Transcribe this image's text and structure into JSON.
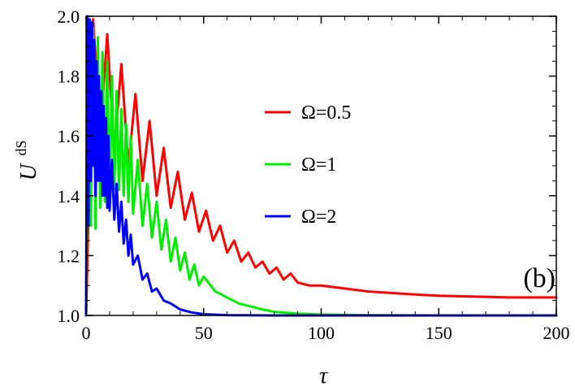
{
  "chart_data": {
    "type": "line",
    "xlabel": "τ",
    "ylabel_main": "U",
    "ylabel_sup": "dS",
    "annotation": "(b)",
    "xlim": [
      0,
      200
    ],
    "ylim": [
      1.0,
      2.0
    ],
    "x_ticks": [
      0,
      50,
      100,
      150,
      200
    ],
    "x_tick_labels": [
      "0",
      "50",
      "100",
      "150",
      "200"
    ],
    "y_ticks": [
      1.0,
      1.2,
      1.4,
      1.6,
      1.8,
      2.0
    ],
    "y_tick_labels": [
      "1.0",
      "1.2",
      "1.4",
      "1.6",
      "1.8",
      "2.0"
    ],
    "legend_position": "right",
    "series": [
      {
        "name": "Ω=0.5",
        "color": "#ff0000",
        "x": [
          0,
          3,
          6,
          9,
          12,
          15,
          18,
          21,
          24,
          27,
          30,
          33,
          36,
          39,
          42,
          45,
          48,
          51,
          54,
          57,
          60,
          63,
          66,
          69,
          72,
          75,
          78,
          81,
          84,
          87,
          90,
          95,
          100,
          110,
          120,
          130,
          140,
          150,
          160,
          170,
          180,
          190,
          200
        ],
        "values": [
          1.0,
          1.99,
          1.6,
          1.94,
          1.55,
          1.84,
          1.5,
          1.74,
          1.45,
          1.65,
          1.4,
          1.56,
          1.36,
          1.48,
          1.32,
          1.41,
          1.28,
          1.35,
          1.25,
          1.3,
          1.21,
          1.25,
          1.18,
          1.21,
          1.16,
          1.18,
          1.14,
          1.16,
          1.12,
          1.14,
          1.11,
          1.1,
          1.1,
          1.09,
          1.08,
          1.075,
          1.07,
          1.066,
          1.064,
          1.062,
          1.06,
          1.06,
          1.06
        ]
      },
      {
        "name": "Ω=1",
        "color": "#00ee00",
        "x": [
          0,
          1,
          2,
          3,
          4,
          5,
          6,
          7,
          8,
          9,
          10,
          11,
          12,
          13,
          14,
          15,
          16,
          17,
          18,
          19,
          20,
          22,
          24,
          26,
          28,
          30,
          32,
          34,
          36,
          38,
          40,
          42,
          44,
          46,
          48,
          50,
          55,
          60,
          65,
          70,
          75,
          80,
          90,
          100,
          120,
          150,
          200
        ],
        "values": [
          1.0,
          1.9,
          1.3,
          1.96,
          1.29,
          1.93,
          1.36,
          1.88,
          1.38,
          1.85,
          1.4,
          1.8,
          1.42,
          1.75,
          1.42,
          1.69,
          1.4,
          1.64,
          1.38,
          1.6,
          1.34,
          1.52,
          1.3,
          1.44,
          1.26,
          1.38,
          1.22,
          1.32,
          1.18,
          1.26,
          1.15,
          1.21,
          1.12,
          1.17,
          1.1,
          1.13,
          1.08,
          1.06,
          1.04,
          1.03,
          1.02,
          1.012,
          1.006,
          1.003,
          1.001,
          1.0,
          1.0
        ]
      },
      {
        "name": "Ω=2",
        "color": "#0000ff",
        "x": [
          0,
          0.5,
          1,
          1.5,
          2,
          2.5,
          3,
          3.5,
          4,
          4.5,
          5,
          5.5,
          6,
          6.5,
          7,
          7.5,
          8,
          8.5,
          9,
          9.5,
          10,
          11,
          12,
          13,
          14,
          15,
          16,
          17,
          18,
          19,
          20,
          22,
          24,
          26,
          28,
          30,
          33,
          36,
          40,
          45,
          50,
          60,
          80,
          100,
          150,
          200
        ],
        "values": [
          1.0,
          2.0,
          1.3,
          1.99,
          1.45,
          1.98,
          1.5,
          1.92,
          1.4,
          1.85,
          1.45,
          1.8,
          1.45,
          1.75,
          1.4,
          1.7,
          1.4,
          1.66,
          1.36,
          1.6,
          1.35,
          1.52,
          1.32,
          1.44,
          1.28,
          1.38,
          1.24,
          1.32,
          1.2,
          1.27,
          1.17,
          1.2,
          1.12,
          1.14,
          1.08,
          1.09,
          1.05,
          1.04,
          1.02,
          1.01,
          1.004,
          1.001,
          1.0,
          1.0,
          1.0,
          1.0
        ]
      }
    ]
  }
}
